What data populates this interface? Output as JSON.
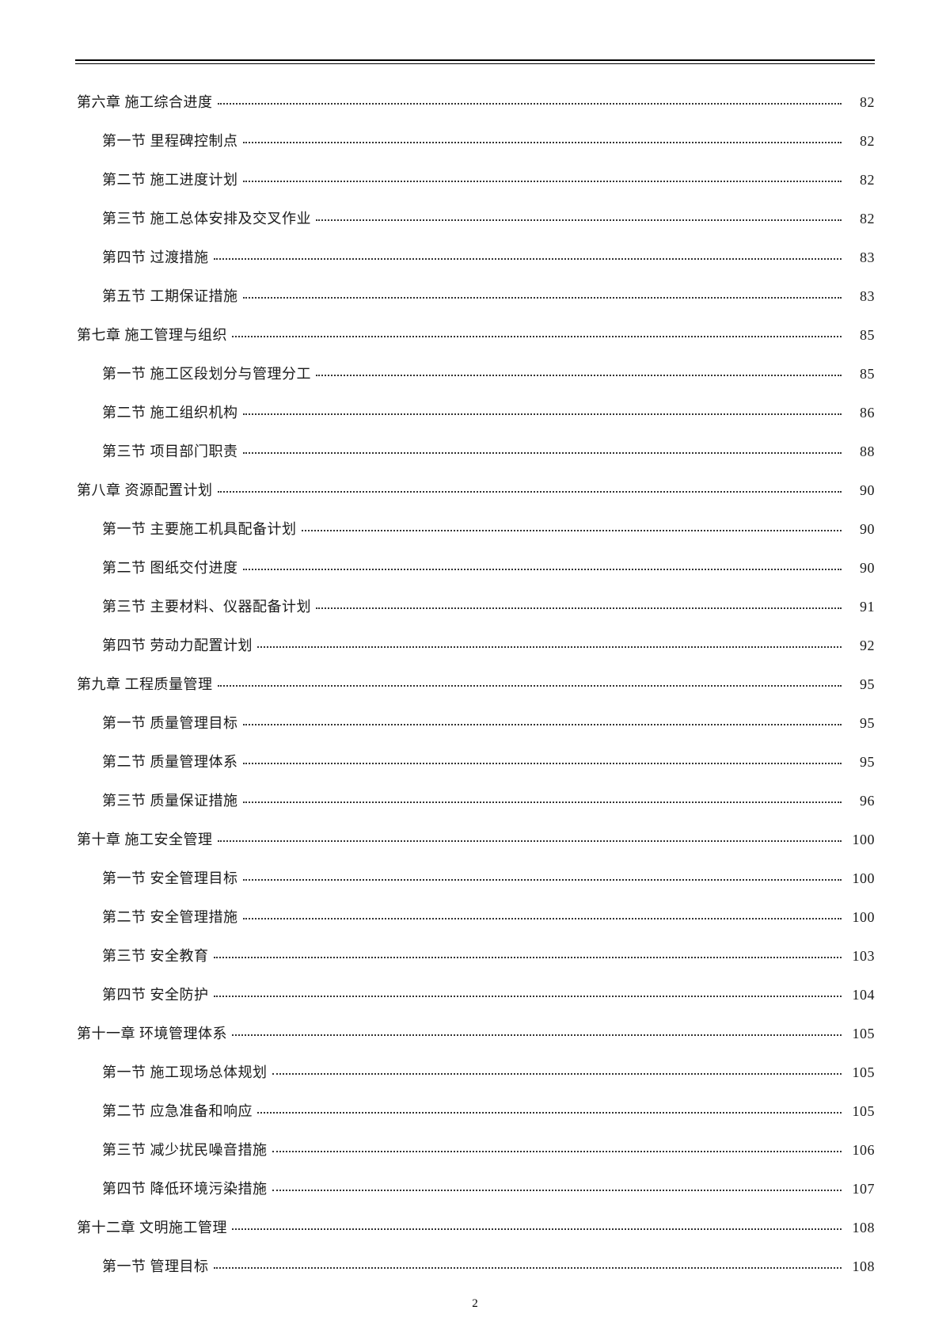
{
  "meta": {
    "pageNumber": "2",
    "text_color": "#1a1a1a",
    "background_color": "#ffffff",
    "font_family": "SimSun",
    "entry_fontsize": 18,
    "line_spacing": 22
  },
  "toc": [
    {
      "level": 1,
      "title": "第六章 施工综合进度",
      "page": "82"
    },
    {
      "level": 2,
      "title": "第一节 里程碑控制点",
      "page": "82"
    },
    {
      "level": 2,
      "title": "第二节 施工进度计划",
      "page": "82"
    },
    {
      "level": 2,
      "title": "第三节 施工总体安排及交叉作业",
      "page": "82"
    },
    {
      "level": 2,
      "title": "第四节 过渡措施",
      "page": "83"
    },
    {
      "level": 2,
      "title": "第五节 工期保证措施",
      "page": "83"
    },
    {
      "level": 1,
      "title": "第七章 施工管理与组织",
      "page": "85"
    },
    {
      "level": 2,
      "title": "第一节 施工区段划分与管理分工",
      "page": "85"
    },
    {
      "level": 2,
      "title": "第二节 施工组织机构",
      "page": "86"
    },
    {
      "level": 2,
      "title": "第三节 项目部门职责",
      "page": "88"
    },
    {
      "level": 1,
      "title": "第八章 资源配置计划",
      "page": "90"
    },
    {
      "level": 2,
      "title": "第一节 主要施工机具配备计划",
      "page": "90"
    },
    {
      "level": 2,
      "title": "第二节 图纸交付进度",
      "page": "90"
    },
    {
      "level": 2,
      "title": "第三节 主要材料、仪器配备计划",
      "page": "91"
    },
    {
      "level": 2,
      "title": "第四节 劳动力配置计划",
      "page": "92"
    },
    {
      "level": 1,
      "title": "第九章 工程质量管理",
      "page": "95"
    },
    {
      "level": 2,
      "title": "第一节 质量管理目标",
      "page": "95"
    },
    {
      "level": 2,
      "title": "第二节 质量管理体系",
      "page": "95"
    },
    {
      "level": 2,
      "title": "第三节 质量保证措施",
      "page": "96"
    },
    {
      "level": 1,
      "title": "第十章 施工安全管理",
      "page": "100"
    },
    {
      "level": 2,
      "title": "第一节 安全管理目标",
      "page": "100"
    },
    {
      "level": 2,
      "title": "第二节 安全管理措施",
      "page": "100"
    },
    {
      "level": 2,
      "title": "第三节 安全教育",
      "page": "103"
    },
    {
      "level": 2,
      "title": "第四节 安全防护",
      "page": "104"
    },
    {
      "level": 1,
      "title": "第十一章 环境管理体系",
      "page": "105"
    },
    {
      "level": 2,
      "title": "第一节 施工现场总体规划",
      "page": "105"
    },
    {
      "level": 2,
      "title": "第二节 应急准备和响应",
      "page": "105"
    },
    {
      "level": 2,
      "title": "第三节 减少扰民噪音措施",
      "page": "106"
    },
    {
      "level": 2,
      "title": "第四节 降低环境污染措施",
      "page": "107"
    },
    {
      "level": 1,
      "title": "第十二章 文明施工管理",
      "page": "108"
    },
    {
      "level": 2,
      "title": "第一节 管理目标",
      "page": "108"
    }
  ]
}
